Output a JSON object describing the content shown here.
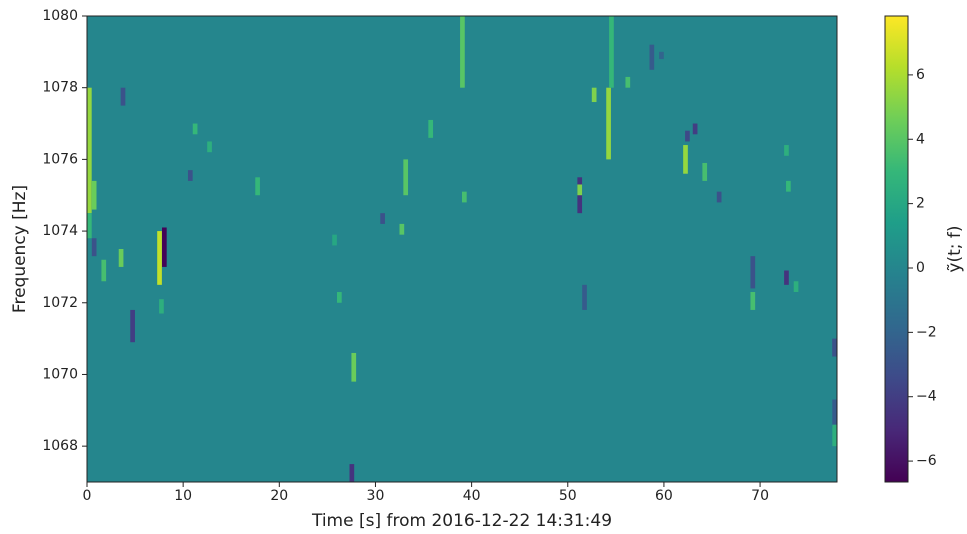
{
  "chart_data": {
    "type": "spectrogram",
    "x_label": "Time [s] from 2016-12-22 14:31:49",
    "y_label": "Frequency [Hz]",
    "colorbar_label": "ỹ(t; f)",
    "xlim": [
      0,
      78
    ],
    "xticks": [
      0,
      10,
      20,
      30,
      40,
      50,
      60,
      70
    ],
    "ylim": [
      1067,
      1080
    ],
    "yticks": [
      1068,
      1070,
      1072,
      1074,
      1076,
      1078,
      1080
    ],
    "clim": [
      -6.65,
      7.83
    ],
    "cticks": [
      {
        "value": -6,
        "label": "−6"
      },
      {
        "value": -4,
        "label": "−4"
      },
      {
        "value": -2,
        "label": "−2"
      },
      0,
      2,
      4,
      6
    ],
    "colormap": "viridis",
    "background_value": 0,
    "cells": [
      {
        "t": 0,
        "f": [
          1074.5,
          1078
        ],
        "value": 5.5
      },
      {
        "t": 0,
        "f": [
          1073.8,
          1074.5
        ],
        "value": 3
      },
      {
        "t": 0.5,
        "f": [
          1074.6,
          1075.4
        ],
        "value": 4.5
      },
      {
        "t": 0.5,
        "f": [
          1073.3,
          1073.8
        ],
        "value": -3
      },
      {
        "t": 1.5,
        "f": [
          1072.6,
          1073.2
        ],
        "value": 3.5
      },
      {
        "t": 3.3,
        "f": [
          1073,
          1073.5
        ],
        "value": 4.5
      },
      {
        "t": 3.5,
        "f": [
          1077.5,
          1078
        ],
        "value": -3
      },
      {
        "t": 4.5,
        "f": [
          1070.9,
          1071.8
        ],
        "value": -4
      },
      {
        "t": 7.3,
        "f": [
          1072.5,
          1074
        ],
        "value": 6.5
      },
      {
        "t": 7.8,
        "f": [
          1073,
          1074.1
        ],
        "value": -6.5
      },
      {
        "t": 7.5,
        "f": [
          1071.7,
          1072.1
        ],
        "value": 2.5
      },
      {
        "t": 11,
        "f": [
          1076.7,
          1077
        ],
        "value": 3
      },
      {
        "t": 12.5,
        "f": [
          1076.2,
          1076.5
        ],
        "value": 2.5
      },
      {
        "t": 10.5,
        "f": [
          1075.4,
          1075.7
        ],
        "value": -3
      },
      {
        "t": 17.5,
        "f": [
          1075,
          1075.5
        ],
        "value": 3
      },
      {
        "t": 27.3,
        "f": [
          1067,
          1067.5
        ],
        "value": -4.5
      },
      {
        "t": 27.5,
        "f": [
          1069.8,
          1070.6
        ],
        "value": 4.5
      },
      {
        "t": 26,
        "f": [
          1072,
          1072.3
        ],
        "value": 3
      },
      {
        "t": 25.5,
        "f": [
          1073.6,
          1073.9
        ],
        "value": 2
      },
      {
        "t": 30.5,
        "f": [
          1074.2,
          1074.5
        ],
        "value": -3
      },
      {
        "t": 32.5,
        "f": [
          1073.9,
          1074.2
        ],
        "value": 4
      },
      {
        "t": 32.9,
        "f": [
          1075,
          1076
        ],
        "value": 4
      },
      {
        "t": 35.5,
        "f": [
          1076.6,
          1077.1
        ],
        "value": 3
      },
      {
        "t": 38.8,
        "f": [
          1078,
          1080
        ],
        "value": 4
      },
      {
        "t": 39,
        "f": [
          1074.8,
          1075.1
        ],
        "value": 3.5
      },
      {
        "t": 51,
        "f": [
          1074.5,
          1075.5
        ],
        "value": -4.5
      },
      {
        "t": 51,
        "f": [
          1075,
          1075.3
        ],
        "value": 5
      },
      {
        "t": 51.5,
        "f": [
          1071.8,
          1072.5
        ],
        "value": -2.5
      },
      {
        "t": 52.5,
        "f": [
          1077.6,
          1078
        ],
        "value": 5
      },
      {
        "t": 54,
        "f": [
          1076,
          1078
        ],
        "value": 5.5
      },
      {
        "t": 54.3,
        "f": [
          1078,
          1080
        ],
        "value": 3
      },
      {
        "t": 56,
        "f": [
          1078,
          1078.3
        ],
        "value": 3.5
      },
      {
        "t": 58.5,
        "f": [
          1078.5,
          1079.2
        ],
        "value": -2.5
      },
      {
        "t": 59.5,
        "f": [
          1078.8,
          1079
        ],
        "value": -2
      },
      {
        "t": 62,
        "f": [
          1075.6,
          1076.4
        ],
        "value": 5.5
      },
      {
        "t": 62.2,
        "f": [
          1076.5,
          1076.8
        ],
        "value": -3.5
      },
      {
        "t": 63,
        "f": [
          1076.7,
          1077
        ],
        "value": -4
      },
      {
        "t": 64,
        "f": [
          1075.4,
          1075.9
        ],
        "value": 3.5
      },
      {
        "t": 65.5,
        "f": [
          1074.8,
          1075.1
        ],
        "value": -3
      },
      {
        "t": 69,
        "f": [
          1071.8,
          1072.3
        ],
        "value": 3.5
      },
      {
        "t": 69,
        "f": [
          1072.4,
          1073.3
        ],
        "value": -3
      },
      {
        "t": 72.5,
        "f": [
          1072.5,
          1072.9
        ],
        "value": -4.5
      },
      {
        "t": 72.5,
        "f": [
          1076.1,
          1076.4
        ],
        "value": 2.5
      },
      {
        "t": 72.7,
        "f": [
          1075.1,
          1075.4
        ],
        "value": 3
      },
      {
        "t": 73.5,
        "f": [
          1072.3,
          1072.6
        ],
        "value": 2.5
      },
      {
        "t": 77.5,
        "f": [
          1070.5,
          1071
        ],
        "value": -3
      },
      {
        "t": 77.8,
        "f": [
          1068.5,
          1069.3
        ],
        "value": -2.5
      },
      {
        "t": 78,
        "f": [
          1068,
          1068.6
        ],
        "value": 2.5
      }
    ]
  }
}
